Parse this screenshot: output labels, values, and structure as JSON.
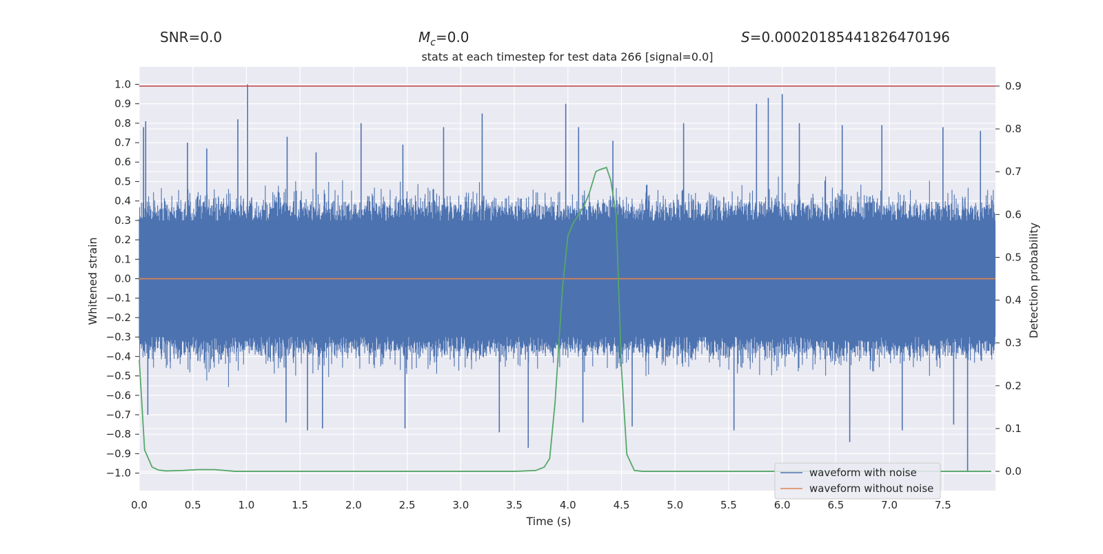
{
  "chart_data": {
    "type": "line",
    "title": "stats at each timestep for test data 266 [signal=0.0]",
    "header": {
      "snr": "SNR=0.0",
      "mc": "=0.0",
      "mc_symbol": "M",
      "mc_subscript": "c",
      "s": "=0.00020185441826470196",
      "s_symbol": "S"
    },
    "xlabel": "Time (s)",
    "ylabel": "Whitened strain",
    "y2label": "Detection probability",
    "xlim": [
      0.0,
      7.99
    ],
    "ylim": [
      -1.09,
      1.09
    ],
    "y2lim": [
      -0.045,
      0.945
    ],
    "x_ticks": [
      0.0,
      0.5,
      1.0,
      1.5,
      2.0,
      2.5,
      3.0,
      3.5,
      4.0,
      4.5,
      5.0,
      5.5,
      6.0,
      6.5,
      7.0,
      7.5
    ],
    "x_tick_labels": [
      "0.0",
      "0.5",
      "1.0",
      "1.5",
      "2.0",
      "2.5",
      "3.0",
      "3.5",
      "4.0",
      "4.5",
      "5.0",
      "5.5",
      "6.0",
      "6.5",
      "7.0",
      "7.5"
    ],
    "y_ticks": [
      1.0,
      0.9,
      0.8,
      0.7,
      0.6,
      0.5,
      0.4,
      0.3,
      0.2,
      0.1,
      0.0,
      -0.1,
      -0.2,
      -0.3,
      -0.4,
      -0.5,
      -0.6,
      -0.7,
      -0.8,
      -0.9,
      -1.0
    ],
    "y_tick_labels": [
      "1.0",
      "0.9",
      "0.8",
      "0.7",
      "0.6",
      "0.5",
      "0.4",
      "0.3",
      "0.2",
      "0.1",
      "0.0",
      "−0.1",
      "−0.2",
      "−0.3",
      "−0.4",
      "−0.5",
      "−0.6",
      "−0.7",
      "−0.8",
      "−0.9",
      "−1.0"
    ],
    "y2_ticks": [
      0.9,
      0.8,
      0.7,
      0.6,
      0.5,
      0.4,
      0.3,
      0.2,
      0.1,
      0.0
    ],
    "y2_tick_labels": [
      "0.9",
      "0.8",
      "0.7",
      "0.6",
      "0.5",
      "0.4",
      "0.3",
      "0.2",
      "0.1",
      "0.0"
    ],
    "threshold": {
      "y2": 0.9
    },
    "series": [
      {
        "name": "waveform with noise",
        "axis": "left",
        "color": "#4c72b0",
        "noise_band": {
          "core_abs": 0.3,
          "typical_peak": 0.45,
          "max_abs": 1.0
        },
        "spikes": [
          {
            "x": 0.04,
            "y": 0.78
          },
          {
            "x": 0.06,
            "y": 0.81
          },
          {
            "x": 0.45,
            "y": 0.7
          },
          {
            "x": 0.63,
            "y": 0.67
          },
          {
            "x": 0.92,
            "y": 0.82
          },
          {
            "x": 1.01,
            "y": 1.0
          },
          {
            "x": 1.38,
            "y": 0.73
          },
          {
            "x": 1.65,
            "y": 0.65
          },
          {
            "x": 2.07,
            "y": 0.8
          },
          {
            "x": 2.46,
            "y": 0.69
          },
          {
            "x": 2.84,
            "y": 0.78
          },
          {
            "x": 3.2,
            "y": 0.85
          },
          {
            "x": 3.98,
            "y": 0.9
          },
          {
            "x": 4.1,
            "y": 0.78
          },
          {
            "x": 4.42,
            "y": 0.71
          },
          {
            "x": 5.08,
            "y": 0.8
          },
          {
            "x": 5.76,
            "y": 0.9
          },
          {
            "x": 5.87,
            "y": 0.93
          },
          {
            "x": 6.0,
            "y": 0.95
          },
          {
            "x": 6.16,
            "y": 0.8
          },
          {
            "x": 6.56,
            "y": 0.79
          },
          {
            "x": 6.93,
            "y": 0.79
          },
          {
            "x": 7.5,
            "y": 0.78
          },
          {
            "x": 7.85,
            "y": 0.76
          },
          {
            "x": 0.08,
            "y": -0.7
          },
          {
            "x": 1.37,
            "y": -0.74
          },
          {
            "x": 1.57,
            "y": -0.78
          },
          {
            "x": 1.71,
            "y": -0.77
          },
          {
            "x": 2.48,
            "y": -0.77
          },
          {
            "x": 3.63,
            "y": -0.87
          },
          {
            "x": 3.36,
            "y": -0.79
          },
          {
            "x": 4.14,
            "y": -0.74
          },
          {
            "x": 4.6,
            "y": -0.76
          },
          {
            "x": 5.55,
            "y": -0.78
          },
          {
            "x": 6.63,
            "y": -0.84
          },
          {
            "x": 7.12,
            "y": -0.78
          },
          {
            "x": 7.6,
            "y": -0.75
          },
          {
            "x": 7.73,
            "y": -0.99
          }
        ]
      },
      {
        "name": "waveform without noise",
        "axis": "left",
        "color": "#dd8452",
        "x": [
          0.0,
          7.99
        ],
        "y": [
          0.0,
          0.0
        ]
      },
      {
        "name": "detection probability",
        "axis": "right",
        "color": "#55a868",
        "x": [
          0.0,
          0.05,
          0.12,
          0.18,
          0.25,
          0.4,
          0.55,
          0.7,
          0.9,
          1.5,
          2.5,
          3.5,
          3.7,
          3.78,
          3.83,
          3.88,
          3.95,
          4.0,
          4.05,
          4.1,
          4.15,
          4.2,
          4.26,
          4.3,
          4.36,
          4.4,
          4.45,
          4.5,
          4.55,
          4.62,
          4.7,
          5.5,
          6.5,
          7.5,
          7.95
        ],
        "y": [
          0.26,
          0.05,
          0.01,
          0.003,
          0.001,
          0.002,
          0.004,
          0.004,
          0.0,
          0.0,
          0.0,
          0.0,
          0.002,
          0.01,
          0.03,
          0.16,
          0.43,
          0.55,
          0.58,
          0.6,
          0.62,
          0.65,
          0.7,
          0.705,
          0.71,
          0.68,
          0.6,
          0.24,
          0.04,
          0.002,
          0.0,
          0.0,
          0.0,
          0.0,
          0.0
        ]
      }
    ],
    "legend": {
      "position": "lower-right",
      "entries": [
        {
          "label": "waveform with noise",
          "color": "#4c72b0"
        },
        {
          "label": "waveform without noise",
          "color": "#dd8452"
        }
      ]
    },
    "colors": {
      "plot_background": "#eaeaf2",
      "grid": "#ffffff",
      "threshold": "#c44e52",
      "text": "#262626",
      "legend_background": "#eaeaf2",
      "legend_border": "#cccccc"
    }
  }
}
